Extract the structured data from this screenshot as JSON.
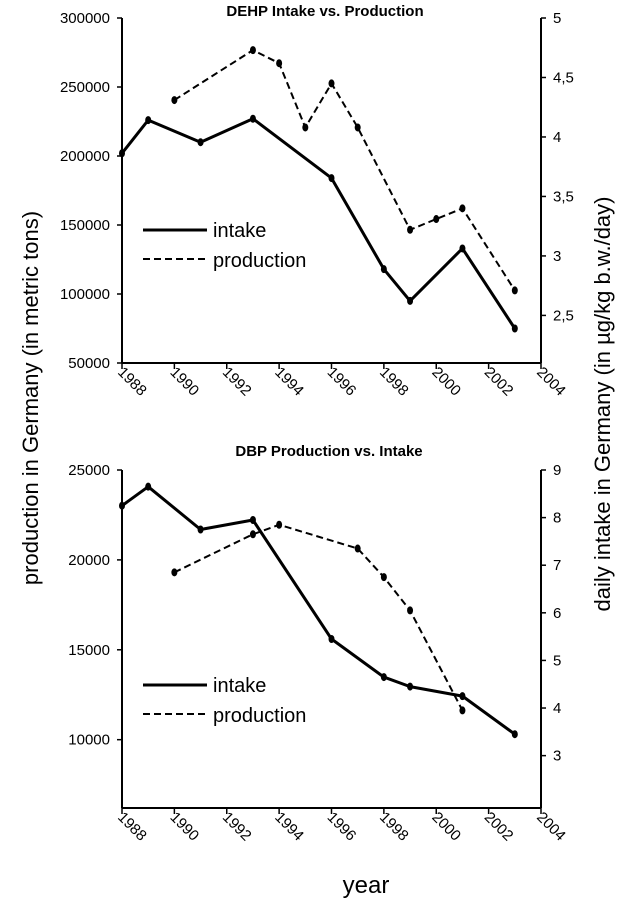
{
  "y_left_label": "production in Germany (in metric tons)",
  "y_right_label": "daily intake in Germany (in µg/kg b.w./day)",
  "x_label": "year",
  "legend": {
    "intake": "intake",
    "production": "production"
  },
  "chart_data": [
    {
      "type": "line",
      "title": "DEHP Intake vs. Production",
      "x_ticks": [
        "1988",
        "1990",
        "1992",
        "1994",
        "1996",
        "1998",
        "2000",
        "2002",
        "2004"
      ],
      "y_left_ticks": [
        "300000",
        "250000",
        "200000",
        "150000",
        "100000",
        "50000"
      ],
      "y_right_ticks": [
        "5",
        "4,5",
        "4",
        "3,5",
        "3",
        "2,5"
      ],
      "xlim": [
        1988,
        2004
      ],
      "ylim_left": [
        50000,
        300000
      ],
      "ylim_right": [
        2.1,
        5.0
      ],
      "series": [
        {
          "name": "intake",
          "style": "solid",
          "axis": "left",
          "x": [
            1988,
            1989,
            1991,
            1993,
            1996,
            1998,
            1999,
            2001,
            2003
          ],
          "y": [
            202000,
            226000,
            210000,
            227000,
            184000,
            118000,
            95000,
            133000,
            75000
          ]
        },
        {
          "name": "production",
          "style": "dashed",
          "axis": "right",
          "x": [
            1990,
            1993,
            1994,
            1995,
            1996,
            1997,
            1999,
            2000,
            2001,
            2003
          ],
          "y": [
            4.31,
            4.73,
            4.62,
            4.08,
            4.45,
            4.08,
            3.22,
            3.31,
            3.4,
            2.71
          ]
        }
      ]
    },
    {
      "type": "line",
      "title": "DBP Production vs. Intake",
      "x_ticks": [
        "1988",
        "1990",
        "1992",
        "1994",
        "1996",
        "1998",
        "2000",
        "2002",
        "2004"
      ],
      "y_left_ticks": [
        "25000",
        "20000",
        "15000",
        "10000"
      ],
      "y_right_ticks": [
        "9",
        "8",
        "7",
        "6",
        "5",
        "4",
        "3"
      ],
      "xlim": [
        1988,
        2004
      ],
      "ylim_left": [
        6200,
        25000
      ],
      "ylim_right": [
        1.9,
        9.0
      ],
      "series": [
        {
          "name": "intake",
          "style": "solid",
          "axis": "right",
          "x": [
            1988,
            1989,
            1991,
            1993,
            1996,
            1998,
            1999,
            2001,
            2003
          ],
          "y": [
            8.25,
            8.65,
            7.75,
            7.95,
            5.45,
            4.65,
            4.45,
            4.25,
            3.45
          ]
        },
        {
          "name": "production",
          "style": "dashed",
          "axis": "right",
          "x": [
            1990,
            1993,
            1994,
            1997,
            1998,
            1999,
            2001
          ],
          "y": [
            6.85,
            7.65,
            7.85,
            7.35,
            6.75,
            6.05,
            3.95
          ]
        }
      ]
    }
  ]
}
